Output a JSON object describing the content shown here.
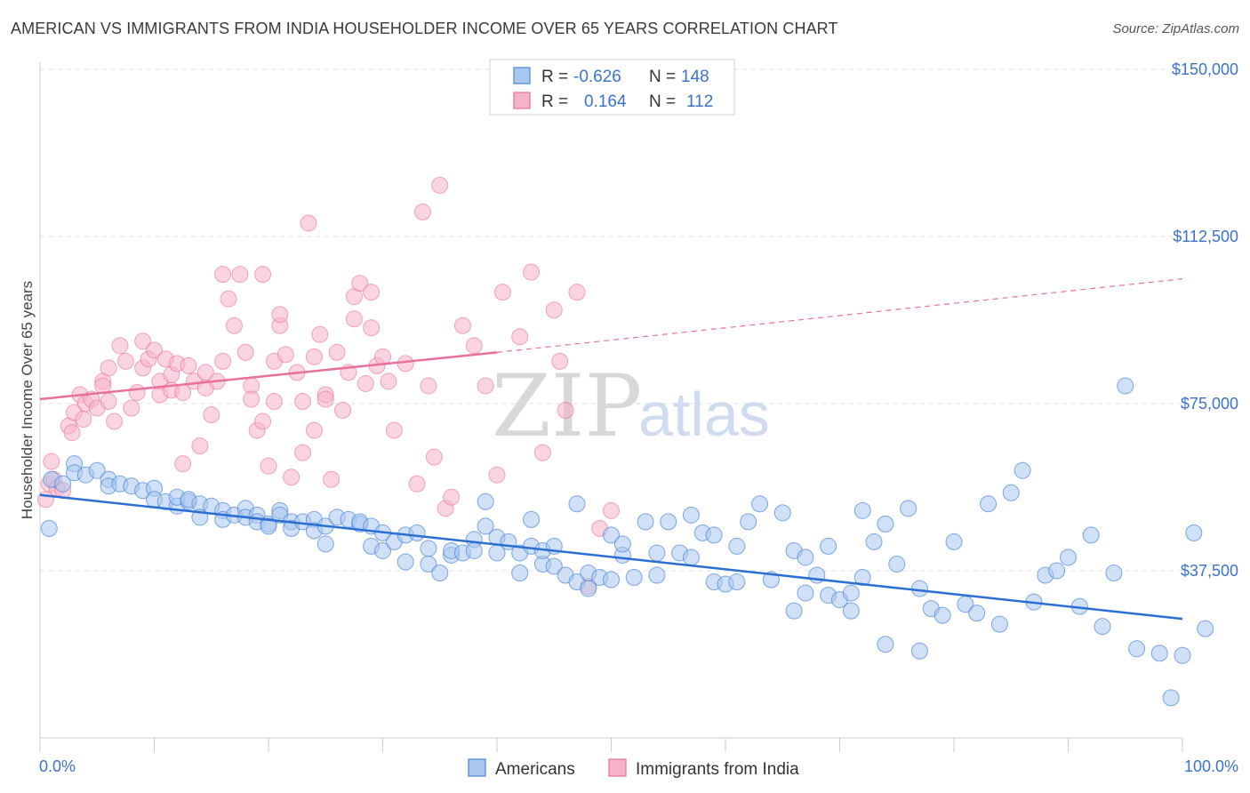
{
  "header": {
    "title": "AMERICAN VS IMMIGRANTS FROM INDIA HOUSEHOLDER INCOME OVER 65 YEARS CORRELATION CHART",
    "source": "Source: ZipAtlas.com"
  },
  "watermark": {
    "part1": "ZIP",
    "part2": "atlas"
  },
  "colors": {
    "americans": "#4a86d8",
    "americans_fill": "#a9c7ef",
    "india": "#e8709a",
    "india_fill": "#f5b3c9",
    "axis_text": "#3b73c8"
  },
  "stats": {
    "rows": [
      {
        "r_label": "R =",
        "r_value": "-0.626",
        "n_label": "N =",
        "n_value": "148"
      },
      {
        "r_label": "R =",
        "r_value": "0.164",
        "n_label": "N =",
        "n_value": "112"
      }
    ]
  },
  "chart_data": {
    "type": "scatter",
    "title": "AMERICAN VS IMMIGRANTS FROM INDIA HOUSEHOLDER INCOME OVER 65 YEARS CORRELATION CHART",
    "xlabel": "",
    "ylabel": "Householder Income Over 65 years",
    "xlim": [
      0,
      100
    ],
    "ylim": [
      0,
      150000
    ],
    "x_tick_labels": [
      "0.0%",
      "100.0%"
    ],
    "y_ticks": [
      37500,
      75000,
      112500,
      150000
    ],
    "y_tick_labels": [
      "$37,500",
      "$75,000",
      "$112,500",
      "$150,000"
    ],
    "grid": true,
    "legend_position": "bottom",
    "series": [
      {
        "name": "Americans",
        "r": -0.626,
        "n": 148,
        "trend": {
          "x": [
            0,
            100
          ],
          "y": [
            54500,
            26700
          ]
        },
        "points": [
          [
            0.8,
            47000
          ],
          [
            1,
            58000
          ],
          [
            2,
            57000
          ],
          [
            3,
            61500
          ],
          [
            3,
            59500
          ],
          [
            4,
            59000
          ],
          [
            5,
            60000
          ],
          [
            6,
            58000
          ],
          [
            6,
            56500
          ],
          [
            7,
            57000
          ],
          [
            8,
            56500
          ],
          [
            9,
            55500
          ],
          [
            10,
            56000
          ],
          [
            10,
            53500
          ],
          [
            11,
            53000
          ],
          [
            12,
            52000
          ],
          [
            12,
            54000
          ],
          [
            13,
            53000
          ],
          [
            13,
            53500
          ],
          [
            14,
            52500
          ],
          [
            14,
            49500
          ],
          [
            15,
            52000
          ],
          [
            16,
            51000
          ],
          [
            16,
            49000
          ],
          [
            17,
            50000
          ],
          [
            18,
            51500
          ],
          [
            18,
            49500
          ],
          [
            19,
            50000
          ],
          [
            19,
            48500
          ],
          [
            20,
            48000
          ],
          [
            20,
            47500
          ],
          [
            21,
            51000
          ],
          [
            21,
            50000
          ],
          [
            22,
            48500
          ],
          [
            22,
            47000
          ],
          [
            23,
            48500
          ],
          [
            24,
            49000
          ],
          [
            24,
            46500
          ],
          [
            25,
            47500
          ],
          [
            25,
            43500
          ],
          [
            26,
            49500
          ],
          [
            27,
            49000
          ],
          [
            28,
            48000
          ],
          [
            28,
            48500
          ],
          [
            29,
            47500
          ],
          [
            29,
            43000
          ],
          [
            30,
            42000
          ],
          [
            30,
            46000
          ],
          [
            31,
            44000
          ],
          [
            32,
            39500
          ],
          [
            32,
            45500
          ],
          [
            33,
            46000
          ],
          [
            34,
            42500
          ],
          [
            34,
            39000
          ],
          [
            35,
            37000
          ],
          [
            36,
            41000
          ],
          [
            36,
            42000
          ],
          [
            37,
            41500
          ],
          [
            38,
            44500
          ],
          [
            38,
            42000
          ],
          [
            39,
            47500
          ],
          [
            39,
            53000
          ],
          [
            40,
            45000
          ],
          [
            40,
            41500
          ],
          [
            41,
            44000
          ],
          [
            42,
            37000
          ],
          [
            42,
            41500
          ],
          [
            43,
            49000
          ],
          [
            43,
            43000
          ],
          [
            44,
            39000
          ],
          [
            44,
            42000
          ],
          [
            45,
            38500
          ],
          [
            45,
            43000
          ],
          [
            46,
            36500
          ],
          [
            47,
            35000
          ],
          [
            47,
            52500
          ],
          [
            48,
            37000
          ],
          [
            48,
            33500
          ],
          [
            49,
            36000
          ],
          [
            50,
            35500
          ],
          [
            50,
            45500
          ],
          [
            51,
            41000
          ],
          [
            51,
            43500
          ],
          [
            52,
            36000
          ],
          [
            53,
            48500
          ],
          [
            54,
            41500
          ],
          [
            54,
            36500
          ],
          [
            55,
            48500
          ],
          [
            56,
            41500
          ],
          [
            57,
            50000
          ],
          [
            57,
            40500
          ],
          [
            58,
            46000
          ],
          [
            59,
            45500
          ],
          [
            59,
            35000
          ],
          [
            60,
            34500
          ],
          [
            61,
            35000
          ],
          [
            61,
            43000
          ],
          [
            62,
            48500
          ],
          [
            63,
            52500
          ],
          [
            64,
            35500
          ],
          [
            65,
            50500
          ],
          [
            66,
            42000
          ],
          [
            66,
            28500
          ],
          [
            67,
            40500
          ],
          [
            67,
            32500
          ],
          [
            68,
            36500
          ],
          [
            69,
            32000
          ],
          [
            69,
            43000
          ],
          [
            70,
            31000
          ],
          [
            71,
            32500
          ],
          [
            71,
            28500
          ],
          [
            72,
            36000
          ],
          [
            72,
            51000
          ],
          [
            73,
            44000
          ],
          [
            74,
            21000
          ],
          [
            74,
            48000
          ],
          [
            75,
            39000
          ],
          [
            76,
            51500
          ],
          [
            77,
            19500
          ],
          [
            77,
            33500
          ],
          [
            78,
            29000
          ],
          [
            79,
            27500
          ],
          [
            80,
            44000
          ],
          [
            81,
            30000
          ],
          [
            82,
            28000
          ],
          [
            83,
            52500
          ],
          [
            84,
            25500
          ],
          [
            85,
            55000
          ],
          [
            86,
            60000
          ],
          [
            87,
            30500
          ],
          [
            88,
            36500
          ],
          [
            89,
            37500
          ],
          [
            90,
            40500
          ],
          [
            91,
            29500
          ],
          [
            92,
            45500
          ],
          [
            93,
            25000
          ],
          [
            94,
            37000
          ],
          [
            95,
            79000
          ],
          [
            96,
            20000
          ],
          [
            98,
            19000
          ],
          [
            99,
            9000
          ],
          [
            100,
            18500
          ],
          [
            101,
            46000
          ],
          [
            102,
            24500
          ]
        ]
      },
      {
        "name": "Immigrants from India",
        "r": 0.164,
        "n": 112,
        "trend": {
          "x": [
            0,
            40
          ],
          "y": [
            76000,
            86500
          ]
        },
        "trend_dashed": {
          "x": [
            40,
            100
          ],
          "y": [
            86500,
            103000
          ]
        },
        "points": [
          [
            0.5,
            53500
          ],
          [
            0.8,
            57000
          ],
          [
            1,
            62000
          ],
          [
            1.2,
            58000
          ],
          [
            1.5,
            56000
          ],
          [
            2,
            55500
          ],
          [
            2.5,
            70000
          ],
          [
            2.8,
            68500
          ],
          [
            3,
            73000
          ],
          [
            3.5,
            77000
          ],
          [
            3.8,
            71500
          ],
          [
            4,
            75000
          ],
          [
            4.5,
            76000
          ],
          [
            5,
            74000
          ],
          [
            5.5,
            80000
          ],
          [
            5.5,
            79000
          ],
          [
            6,
            83000
          ],
          [
            6,
            75500
          ],
          [
            6.5,
            71000
          ],
          [
            7,
            88000
          ],
          [
            7.5,
            84500
          ],
          [
            8,
            74000
          ],
          [
            8.5,
            77500
          ],
          [
            9,
            83000
          ],
          [
            9,
            89000
          ],
          [
            9.5,
            85000
          ],
          [
            10,
            87000
          ],
          [
            10.5,
            80000
          ],
          [
            10.5,
            77000
          ],
          [
            11,
            85000
          ],
          [
            11.5,
            78000
          ],
          [
            11.5,
            81500
          ],
          [
            12,
            84000
          ],
          [
            12.5,
            77500
          ],
          [
            12.5,
            61500
          ],
          [
            13,
            83500
          ],
          [
            13.5,
            80000
          ],
          [
            14,
            65500
          ],
          [
            14.5,
            78500
          ],
          [
            14.5,
            82000
          ],
          [
            15,
            72500
          ],
          [
            15.5,
            80000
          ],
          [
            16,
            84500
          ],
          [
            16,
            104000
          ],
          [
            16.5,
            98500
          ],
          [
            17,
            92500
          ],
          [
            17.5,
            104000
          ],
          [
            18,
            86500
          ],
          [
            18.5,
            79000
          ],
          [
            18.5,
            76000
          ],
          [
            19,
            69000
          ],
          [
            19.5,
            104000
          ],
          [
            19.5,
            71000
          ],
          [
            20,
            61000
          ],
          [
            20.5,
            75500
          ],
          [
            20.5,
            84500
          ],
          [
            21,
            92500
          ],
          [
            21,
            95000
          ],
          [
            21.5,
            86000
          ],
          [
            22,
            58500
          ],
          [
            22.5,
            82000
          ],
          [
            23,
            64000
          ],
          [
            23,
            75500
          ],
          [
            23.5,
            115500
          ],
          [
            24,
            69000
          ],
          [
            24,
            85500
          ],
          [
            24.5,
            90500
          ],
          [
            25,
            77000
          ],
          [
            25,
            76000
          ],
          [
            25.5,
            58000
          ],
          [
            26,
            86500
          ],
          [
            26.5,
            73500
          ],
          [
            27,
            82000
          ],
          [
            27.5,
            94000
          ],
          [
            27.5,
            99000
          ],
          [
            28,
            102000
          ],
          [
            28.5,
            79500
          ],
          [
            29,
            100000
          ],
          [
            29,
            92000
          ],
          [
            29.5,
            83500
          ],
          [
            30,
            85500
          ],
          [
            30.5,
            80000
          ],
          [
            31,
            69000
          ],
          [
            32,
            84000
          ],
          [
            33,
            57000
          ],
          [
            33.5,
            118000
          ],
          [
            34,
            79000
          ],
          [
            34.5,
            63000
          ],
          [
            35,
            124000
          ],
          [
            35.5,
            51500
          ],
          [
            36,
            54000
          ],
          [
            37,
            92500
          ],
          [
            38,
            88000
          ],
          [
            39,
            79000
          ],
          [
            40,
            59000
          ],
          [
            40.5,
            100000
          ],
          [
            42,
            90000
          ],
          [
            43,
            104500
          ],
          [
            44,
            64000
          ],
          [
            45,
            96000
          ],
          [
            45.5,
            84500
          ],
          [
            46,
            73500
          ],
          [
            47,
            100000
          ],
          [
            48,
            34000
          ],
          [
            49,
            47000
          ],
          [
            50,
            51000
          ]
        ]
      }
    ]
  },
  "legend": {
    "items": [
      "Americans",
      "Immigrants from India"
    ]
  }
}
